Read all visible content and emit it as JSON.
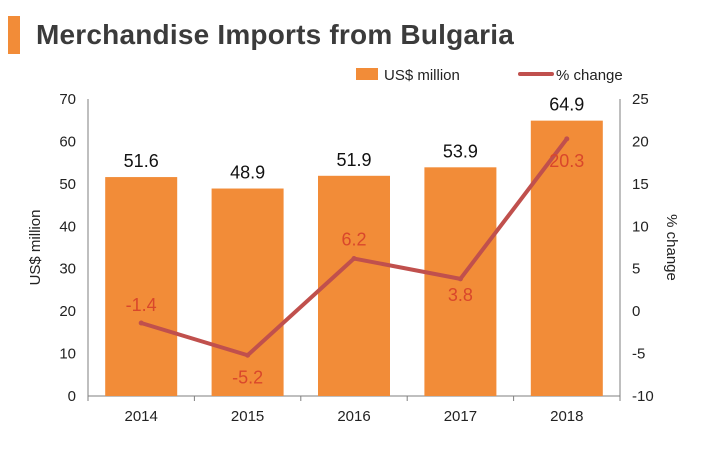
{
  "title": "Merchandise Imports from Bulgaria",
  "colors": {
    "accent": "#F28C38",
    "bar": "#F28C38",
    "line": "#C0504D",
    "line_label": "#D9472B",
    "axis": "#7f7f7f"
  },
  "chart_data": {
    "type": "bar",
    "title": "Merchandise Imports from Bulgaria",
    "categories": [
      "2014",
      "2015",
      "2016",
      "2017",
      "2018"
    ],
    "series": [
      {
        "name": "US$ million",
        "type": "bar",
        "axis": "left",
        "values": [
          51.6,
          48.9,
          51.9,
          53.9,
          64.9
        ]
      },
      {
        "name": "% change",
        "type": "line",
        "axis": "right",
        "values": [
          -1.4,
          -5.2,
          6.2,
          3.8,
          20.3
        ]
      }
    ],
    "ylabel": "US$ million",
    "y2label": "% change",
    "ylim": [
      0,
      70
    ],
    "y2lim": [
      -10,
      25
    ],
    "yticks": [
      "0",
      "10",
      "20",
      "30",
      "40",
      "50",
      "60",
      "70"
    ],
    "y2ticks": [
      "-10",
      "-5",
      "0",
      "5",
      "10",
      "15",
      "20",
      "25"
    ],
    "legend": "top-right",
    "grid": false
  }
}
